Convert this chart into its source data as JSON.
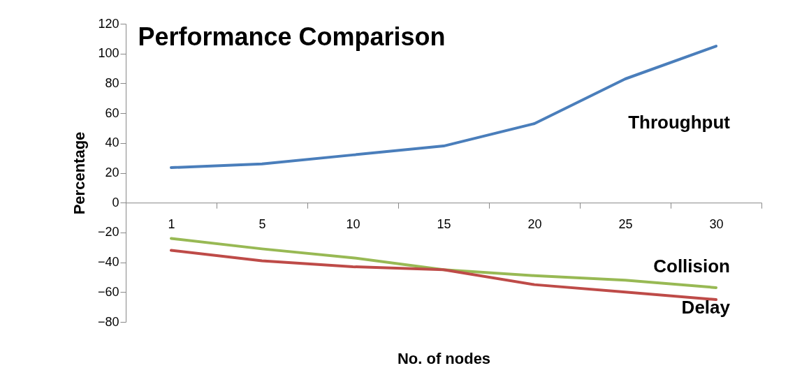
{
  "chart_data": {
    "type": "line",
    "title": "Performance Comparison",
    "xlabel": "No. of nodes",
    "ylabel": "Percentage",
    "categories": [
      "1",
      "5",
      "10",
      "15",
      "20",
      "25",
      "30"
    ],
    "series": [
      {
        "name": "Throughput",
        "color": "#4a7ebb",
        "values": [
          23.5,
          26,
          32,
          38,
          53,
          83,
          105
        ]
      },
      {
        "name": "Collision",
        "color": "#98b954",
        "values": [
          -24,
          -31,
          -37,
          -45,
          -49,
          -52,
          -57
        ]
      },
      {
        "name": "Delay",
        "color": "#be4b48",
        "values": [
          -32,
          -39,
          -43,
          -45,
          -55,
          -60,
          -65
        ]
      }
    ],
    "ylim": [
      -80,
      120
    ],
    "yticks": [
      -80,
      -60,
      -40,
      -20,
      0,
      20,
      40,
      60,
      80,
      100,
      120
    ],
    "grid": false,
    "legend": false,
    "marker": "none",
    "line_style": "solid"
  }
}
